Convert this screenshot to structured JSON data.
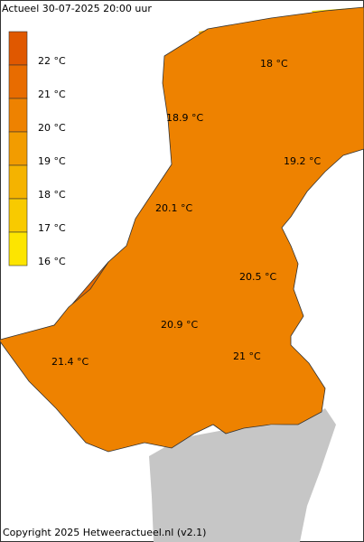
{
  "header": {
    "title": "Actueel 30-07-2025  20:00 uur"
  },
  "legend": {
    "items": [
      {
        "label": "22 °C",
        "color": "#e05800"
      },
      {
        "label": "21 °C",
        "color": "#e86c00"
      },
      {
        "label": "20 °C",
        "color": "#ee8200"
      },
      {
        "label": "19 °C",
        "color": "#f29c00"
      },
      {
        "label": "18 °C",
        "color": "#f5b300"
      },
      {
        "label": "17 °C",
        "color": "#f8ca00"
      },
      {
        "label": "16 °C",
        "color": "#fde500"
      }
    ]
  },
  "map": {
    "labels": [
      "18 °C",
      "18.9 °C",
      "19.2 °C",
      "20.1 °C",
      "20.5 °C",
      "20.9 °C",
      "21.4 °C",
      "21 °C"
    ]
  },
  "footer": {
    "copyright": "Copyright 2025 Hetweeractueel.nl (v2.1)"
  }
}
